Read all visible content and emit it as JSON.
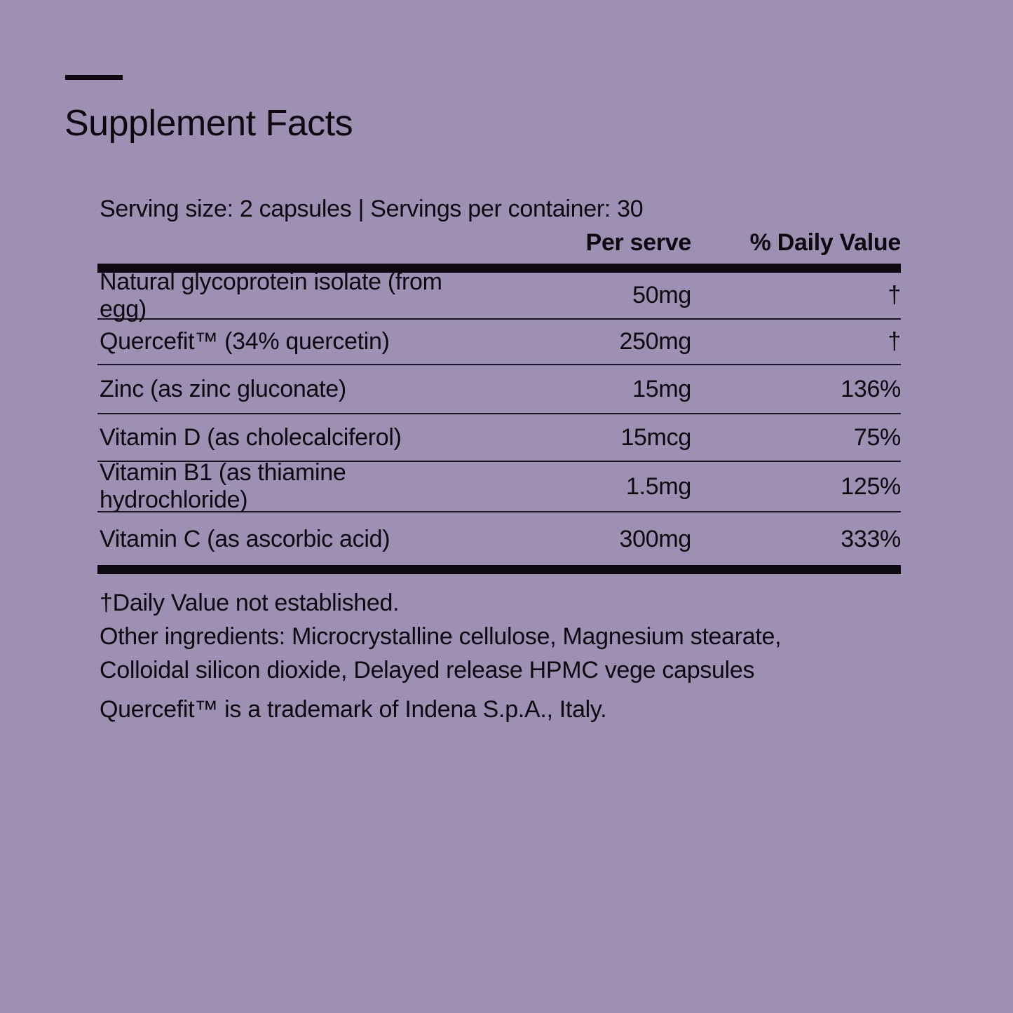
{
  "title": "Supplement Facts",
  "serving": "Serving size: 2 capsules | Servings per container: 30",
  "columns": {
    "per_serve": "Per serve",
    "daily_value": "% Daily Value"
  },
  "rows": [
    {
      "name": "Natural glycoprotein isolate (from egg)",
      "amount": "50mg",
      "dv": "†"
    },
    {
      "name": "Quercefit™ (34% quercetin)",
      "amount": "250mg",
      "dv": "†"
    },
    {
      "name": "Zinc (as zinc gluconate)",
      "amount": "15mg",
      "dv": "136%"
    },
    {
      "name": "Vitamin D (as cholecalciferol)",
      "amount": "15mcg",
      "dv": "75%"
    },
    {
      "name": "Vitamin B1 (as thiamine hydrochloride)",
      "amount": "1.5mg",
      "dv": "125%"
    },
    {
      "name": "Vitamin C (as ascorbic acid)",
      "amount": "300mg",
      "dv": "333%"
    }
  ],
  "notes": {
    "dagger": "†Daily Value not established.",
    "other": "Other ingredients: Microcrystalline cellulose, Magnesium stearate, Colloidal silicon dioxide, Delayed release HPMC vege capsules",
    "trademark": "Quercefit™ is a trademark of Indena S.p.A., Italy."
  },
  "colors": {
    "background": "#9e90b3",
    "text": "#0c0a10"
  }
}
